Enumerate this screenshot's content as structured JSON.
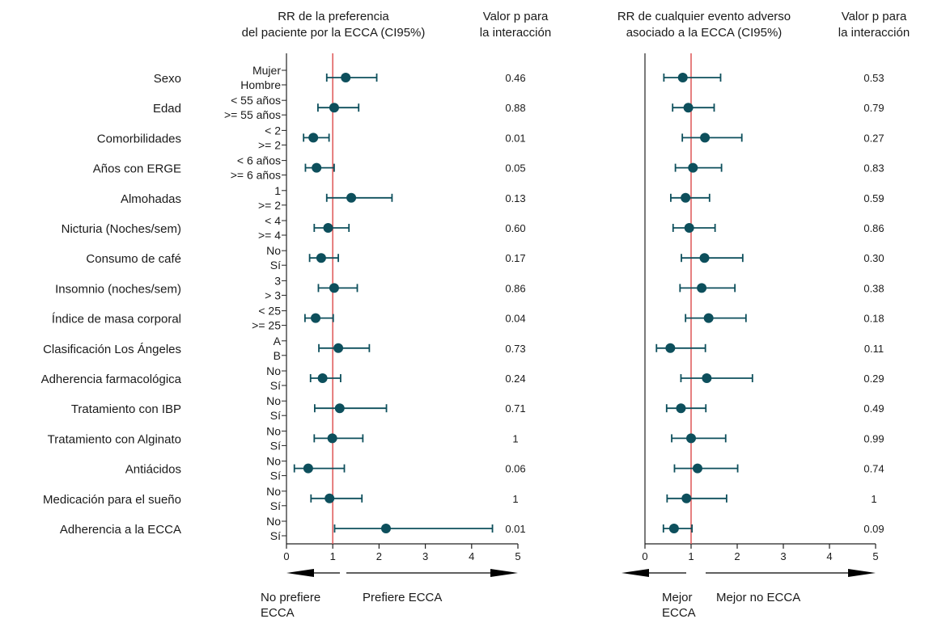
{
  "chart_data": [
    {
      "type": "forest",
      "title_lines": [
        "RR de la preferencia",
        "del paciente por la ECCA (CI95%)"
      ],
      "pvalue_header_lines": [
        "Valor p para",
        "la interacción"
      ],
      "xlim": [
        0,
        5
      ],
      "x_ticks": [
        0,
        1,
        2,
        3,
        4,
        5
      ],
      "reference_line": 1,
      "direction_labels": {
        "left": [
          "No prefiere",
          "ECCA"
        ],
        "right": [
          "Prefiere ECCA"
        ]
      },
      "rows": [
        {
          "estimate": 1.28,
          "lower": 0.87,
          "upper": 1.95,
          "p": "0.46"
        },
        {
          "estimate": 1.03,
          "lower": 0.68,
          "upper": 1.56,
          "p": "0.88"
        },
        {
          "estimate": 0.58,
          "lower": 0.37,
          "upper": 0.92,
          "p": "0.01"
        },
        {
          "estimate": 0.65,
          "lower": 0.41,
          "upper": 1.03,
          "p": "0.05"
        },
        {
          "estimate": 1.4,
          "lower": 0.87,
          "upper": 2.28,
          "p": "0.13"
        },
        {
          "estimate": 0.9,
          "lower": 0.6,
          "upper": 1.35,
          "p": "0.60"
        },
        {
          "estimate": 0.75,
          "lower": 0.5,
          "upper": 1.12,
          "p": "0.17"
        },
        {
          "estimate": 1.03,
          "lower": 0.69,
          "upper": 1.53,
          "p": "0.86"
        },
        {
          "estimate": 0.63,
          "lower": 0.4,
          "upper": 1.01,
          "p": "0.04"
        },
        {
          "estimate": 1.12,
          "lower": 0.7,
          "upper": 1.79,
          "p": "0.73"
        },
        {
          "estimate": 0.78,
          "lower": 0.52,
          "upper": 1.17,
          "p": "0.24"
        },
        {
          "estimate": 1.15,
          "lower": 0.61,
          "upper": 2.16,
          "p": "0.71"
        },
        {
          "estimate": 0.99,
          "lower": 0.6,
          "upper": 1.65,
          "p": "1"
        },
        {
          "estimate": 0.47,
          "lower": 0.17,
          "upper": 1.25,
          "p": "0.06"
        },
        {
          "estimate": 0.93,
          "lower": 0.53,
          "upper": 1.63,
          "p": "1"
        },
        {
          "estimate": 2.15,
          "lower": 1.04,
          "upper": 4.45,
          "p": "0.01"
        }
      ]
    },
    {
      "type": "forest",
      "title_lines": [
        "RR de cualquier evento adverso",
        "asociado a la ECCA (CI95%)"
      ],
      "pvalue_header_lines": [
        "Valor p para",
        "la interacción"
      ],
      "xlim": [
        0,
        5
      ],
      "x_ticks": [
        0,
        1,
        2,
        3,
        4,
        5
      ],
      "reference_line": 1,
      "direction_labels": {
        "left": [
          "Mejor",
          "ECCA"
        ],
        "right": [
          "Mejor no ECCA"
        ]
      },
      "rows": [
        {
          "estimate": 0.82,
          "lower": 0.41,
          "upper": 1.64,
          "p": "0.53"
        },
        {
          "estimate": 0.94,
          "lower": 0.6,
          "upper": 1.5,
          "p": "0.79"
        },
        {
          "estimate": 1.3,
          "lower": 0.81,
          "upper": 2.1,
          "p": "0.27"
        },
        {
          "estimate": 1.04,
          "lower": 0.66,
          "upper": 1.66,
          "p": "0.83"
        },
        {
          "estimate": 0.88,
          "lower": 0.56,
          "upper": 1.4,
          "p": "0.59"
        },
        {
          "estimate": 0.96,
          "lower": 0.61,
          "upper": 1.52,
          "p": "0.86"
        },
        {
          "estimate": 1.29,
          "lower": 0.79,
          "upper": 2.12,
          "p": "0.30"
        },
        {
          "estimate": 1.23,
          "lower": 0.76,
          "upper": 1.95,
          "p": "0.38"
        },
        {
          "estimate": 1.38,
          "lower": 0.88,
          "upper": 2.19,
          "p": "0.18"
        },
        {
          "estimate": 0.55,
          "lower": 0.25,
          "upper": 1.31,
          "p": "0.11"
        },
        {
          "estimate": 1.34,
          "lower": 0.78,
          "upper": 2.33,
          "p": "0.29"
        },
        {
          "estimate": 0.78,
          "lower": 0.47,
          "upper": 1.32,
          "p": "0.49"
        },
        {
          "estimate": 1.0,
          "lower": 0.58,
          "upper": 1.75,
          "p": "0.99"
        },
        {
          "estimate": 1.14,
          "lower": 0.64,
          "upper": 2.01,
          "p": "0.74"
        },
        {
          "estimate": 0.9,
          "lower": 0.48,
          "upper": 1.77,
          "p": "1"
        },
        {
          "estimate": 0.63,
          "lower": 0.4,
          "upper": 1.02,
          "p": "0.09"
        }
      ]
    }
  ],
  "variables": [
    {
      "name": "Sexo",
      "levels": [
        "Mujer",
        "Hombre"
      ]
    },
    {
      "name": "Edad",
      "levels": [
        "< 55 años",
        ">= 55 años"
      ]
    },
    {
      "name": "Comorbilidades",
      "levels": [
        "< 2",
        ">= 2"
      ]
    },
    {
      "name": "Años con ERGE",
      "levels": [
        "< 6 años",
        ">= 6 años"
      ]
    },
    {
      "name": "Almohadas",
      "levels": [
        "1",
        ">= 2"
      ]
    },
    {
      "name": "Nicturia (Noches/sem)",
      "levels": [
        "< 4",
        ">= 4"
      ]
    },
    {
      "name": "Consumo de café",
      "levels": [
        "No",
        "Sí"
      ]
    },
    {
      "name": "Insomnio (noches/sem)",
      "levels": [
        "3",
        "> 3"
      ]
    },
    {
      "name": "Índice de masa corporal",
      "levels": [
        "< 25",
        ">= 25"
      ]
    },
    {
      "name": "Clasificación Los Ángeles",
      "levels": [
        "A",
        "B"
      ]
    },
    {
      "name": "Adherencia farmacológica",
      "levels": [
        "No",
        "Sí"
      ]
    },
    {
      "name": "Tratamiento con IBP",
      "levels": [
        "No",
        "Sí"
      ]
    },
    {
      "name": "Tratamiento con Alginato",
      "levels": [
        "No",
        "Sí"
      ]
    },
    {
      "name": "Antiácidos",
      "levels": [
        "No",
        "Sí"
      ]
    },
    {
      "name": "Medicación para el sueño",
      "levels": [
        "No",
        "Sí"
      ]
    },
    {
      "name": "Adherencia a la ECCA",
      "levels": [
        "No",
        "Sí"
      ]
    }
  ],
  "colors": {
    "marker": "#0d4f5c",
    "reference": "#e06060",
    "axis": "#222222",
    "text": "#1a1a1a"
  }
}
